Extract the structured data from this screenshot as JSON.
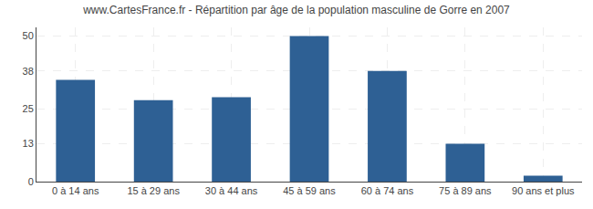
{
  "chart_data": {
    "type": "bar",
    "title": "www.CartesFrance.fr - Répartition par âge de la population masculine de Gorre en 2007",
    "categories": [
      "0 à 14 ans",
      "15 à 29 ans",
      "30 à 44 ans",
      "45 à 59 ans",
      "60 à 74 ans",
      "75 à 89 ans",
      "90 ans et plus"
    ],
    "values": [
      35,
      28,
      29,
      50,
      38,
      13,
      2
    ],
    "color": "#2e6094",
    "ylim": [
      0,
      53
    ],
    "yticks": [
      0,
      13,
      25,
      38,
      50
    ],
    "grid": true
  }
}
